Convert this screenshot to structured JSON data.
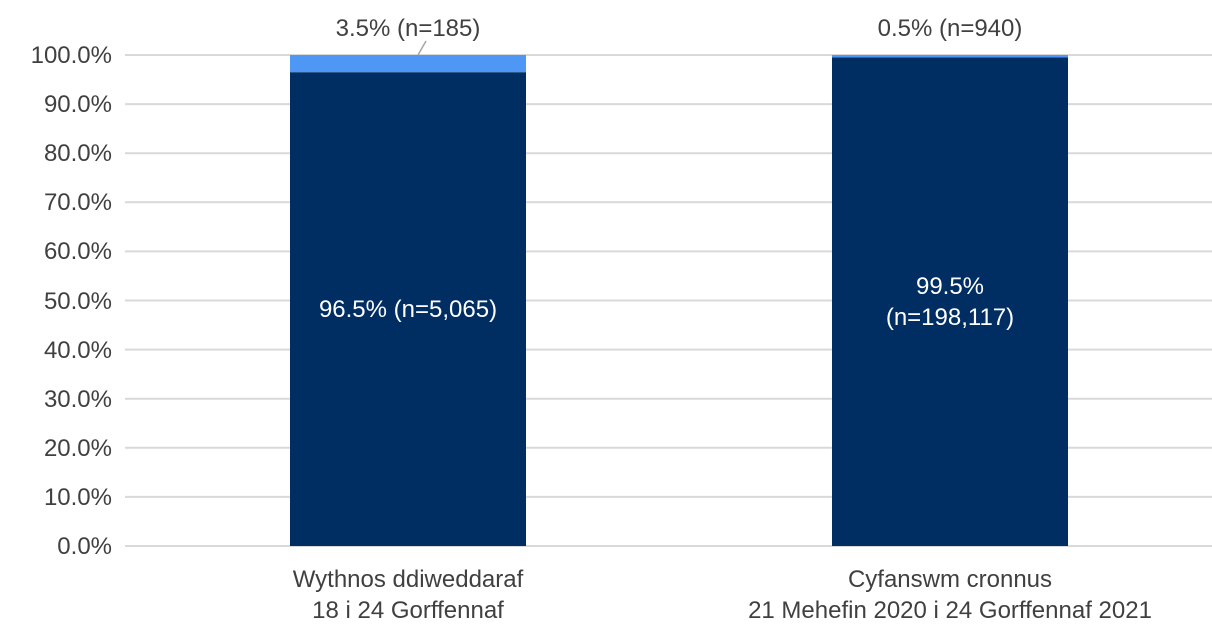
{
  "chart_data": {
    "type": "stacked-bar",
    "categories": [
      "Wythnos ddiweddaraf\n18 i 24 Gorffennaf",
      "Cyfanswm cronnus\n21 Mehefin 2020 i 24 Gorffennaf 2021"
    ],
    "series": [
      {
        "color": "#002d62",
        "values": [
          96.5,
          99.5
        ],
        "value_labels": [
          "96.5% (n=5,065)",
          "99.5%\n(n=198,117)"
        ]
      },
      {
        "color": "#4f97f5",
        "values": [
          3.5,
          0.5
        ],
        "value_labels": [
          "3.5% (n=185)",
          "0.5% (n=940)"
        ]
      }
    ],
    "ylim": [
      0,
      100
    ],
    "yticks": [
      {
        "value": 0,
        "label": "0.0%"
      },
      {
        "value": 10,
        "label": "10.0%"
      },
      {
        "value": 20,
        "label": "20.0%"
      },
      {
        "value": 30,
        "label": "30.0%"
      },
      {
        "value": 40,
        "label": "40.0%"
      },
      {
        "value": 50,
        "label": "50.0%"
      },
      {
        "value": 60,
        "label": "60.0%"
      },
      {
        "value": 70,
        "label": "70.0%"
      },
      {
        "value": 80,
        "label": "80.0%"
      },
      {
        "value": 90,
        "label": "90.0%"
      },
      {
        "value": 100,
        "label": "100.0%"
      }
    ],
    "grid": true
  }
}
